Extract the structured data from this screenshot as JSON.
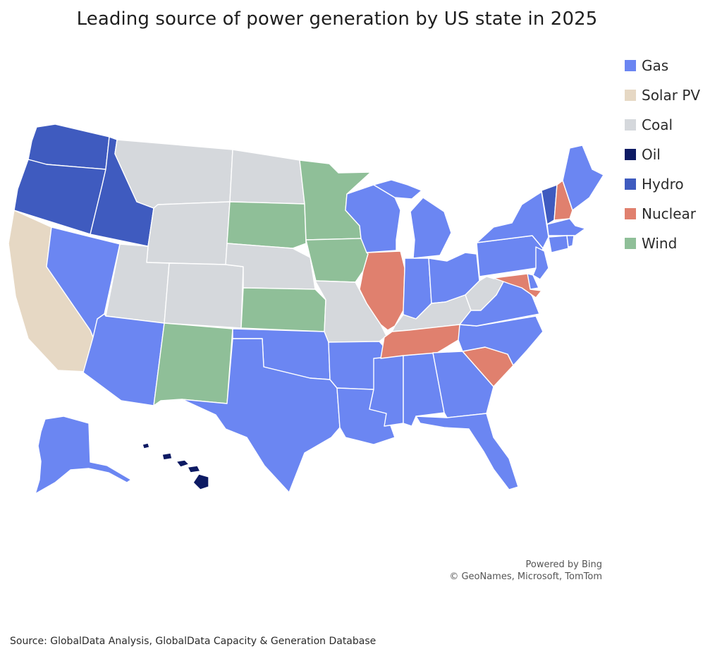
{
  "title": "Leading source of power generation by US state in 2025",
  "legend": [
    {
      "label": "Gas",
      "color": "#6b86f2"
    },
    {
      "label": "Solar PV",
      "color": "#e6d8c4"
    },
    {
      "label": "Coal",
      "color": "#d5d8dc"
    },
    {
      "label": "Oil",
      "color": "#0d1a63"
    },
    {
      "label": "Hydro",
      "color": "#3f5bbf"
    },
    {
      "label": "Nuclear",
      "color": "#e0806e"
    },
    {
      "label": "Wind",
      "color": "#8fbf98"
    }
  ],
  "attribution": {
    "line1": "Powered by Bing",
    "line2": "© GeoNames, Microsoft, TomTom"
  },
  "source": "Source: GlobalData Analysis, GlobalData Capacity & Generation Database",
  "state_sources": {
    "Washington": "Hydro",
    "Oregon": "Hydro",
    "Idaho": "Hydro",
    "Vermont": "Hydro",
    "California": "Solar PV",
    "Montana": "Coal",
    "Wyoming": "Coal",
    "North Dakota": "Coal",
    "Utah": "Coal",
    "Colorado": "Coal",
    "Nebraska": "Coal",
    "Missouri": "Coal",
    "Kentucky": "Coal",
    "West Virginia": "Coal",
    "South Dakota": "Wind",
    "Minnesota": "Wind",
    "Iowa": "Wind",
    "Kansas": "Wind",
    "New Mexico": "Wind",
    "Illinois": "Nuclear",
    "Tennessee": "Nuclear",
    "South Carolina": "Nuclear",
    "New Hampshire": "Nuclear",
    "Maryland": "Nuclear",
    "Hawaii": "Oil",
    "Nevada": "Gas",
    "Arizona": "Gas",
    "Texas": "Gas",
    "Oklahoma": "Gas",
    "Arkansas": "Gas",
    "Louisiana": "Gas",
    "Mississippi": "Gas",
    "Alabama": "Gas",
    "Georgia": "Gas",
    "Florida": "Gas",
    "North Carolina": "Gas",
    "Virginia": "Gas",
    "Ohio": "Gas",
    "Indiana": "Gas",
    "Michigan": "Gas",
    "Wisconsin": "Gas",
    "Pennsylvania": "Gas",
    "New York": "Gas",
    "New Jersey": "Gas",
    "Delaware": "Gas",
    "Connecticut": "Gas",
    "Rhode Island": "Gas",
    "Massachusetts": "Gas",
    "Maine": "Gas",
    "Alaska": "Gas"
  }
}
